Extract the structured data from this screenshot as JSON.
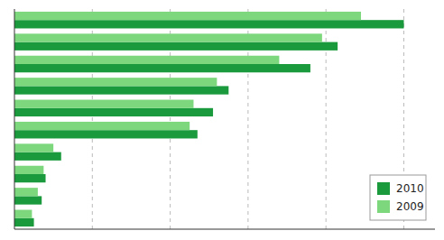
{
  "chart_data": {
    "type": "bar",
    "orientation": "horizontal",
    "categories": [
      null,
      null,
      null,
      null,
      null,
      null,
      null,
      null,
      null,
      null
    ],
    "series": [
      {
        "name": "2010",
        "color": "#1a9a3c",
        "values": [
          100,
          83,
          76,
          55,
          51,
          47,
          12,
          8,
          7,
          5
        ]
      },
      {
        "name": "2009",
        "color": "#7dd87d",
        "values": [
          89,
          79,
          68,
          52,
          46,
          45,
          10,
          7.5,
          6,
          4.5
        ]
      }
    ],
    "xlim": [
      0,
      108
    ],
    "xticks": [
      20,
      40,
      60,
      80,
      100
    ],
    "grid": true,
    "legend": "lower right",
    "tick_labels": false
  }
}
